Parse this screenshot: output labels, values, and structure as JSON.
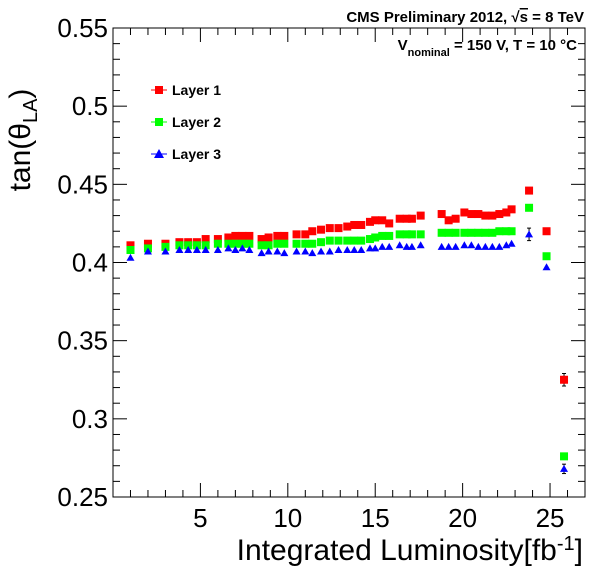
{
  "header": {
    "title_prefix": "CMS Preliminary 2012, ",
    "sqrt": "√",
    "title_s": "s",
    "title_suffix": " = 8 TeV",
    "cond_v": "V",
    "cond_sub": "nominal",
    "cond_rest": " = 150 V, T = 10 °C"
  },
  "axes": {
    "y_label_main": "tan(θ",
    "y_label_sub": "LA",
    "y_label_close": ")",
    "x_label_main": "Integrated Luminosity[fb",
    "x_label_sup": "-1",
    "x_label_close": "]",
    "y_ticks": [
      "0.25",
      "0.3",
      "0.35",
      "0.4",
      "0.45",
      "0.5",
      "0.55"
    ],
    "x_ticks": [
      "5",
      "10",
      "15",
      "20",
      "25"
    ]
  },
  "legend": {
    "entries": [
      "Layer 1",
      "Layer 2",
      "Layer 3"
    ]
  },
  "colors": {
    "layer1": "#ff0000",
    "layer2": "#00ff00",
    "layer3": "#0000ff"
  },
  "chart_data": {
    "type": "scatter",
    "title": "CMS Preliminary 2012, √s = 8 TeV",
    "xlabel": "Integrated Luminosity[fb-1]",
    "ylabel": "tan(θLA)",
    "xlim": [
      0,
      27
    ],
    "ylim": [
      0.25,
      0.55
    ],
    "legend_position": "top-left",
    "series": [
      {
        "name": "Layer 1",
        "marker": "square",
        "x": [
          1.0,
          2.0,
          3.0,
          3.8,
          4.3,
          4.8,
          5.3,
          6.0,
          6.6,
          7.0,
          7.4,
          7.8,
          8.5,
          8.9,
          9.4,
          9.8,
          10.5,
          11.0,
          11.4,
          11.9,
          12.4,
          12.9,
          13.4,
          13.8,
          14.2,
          14.7,
          15.0,
          15.4,
          15.8,
          16.4,
          16.8,
          17.1,
          17.6,
          18.8,
          19.2,
          19.6,
          20.1,
          20.5,
          20.9,
          21.3,
          21.7,
          22.1,
          22.5,
          22.8,
          23.8,
          24.8,
          25.8
        ],
        "y": [
          0.411,
          0.412,
          0.412,
          0.413,
          0.413,
          0.413,
          0.415,
          0.415,
          0.416,
          0.417,
          0.417,
          0.417,
          0.415,
          0.416,
          0.417,
          0.417,
          0.418,
          0.418,
          0.42,
          0.421,
          0.422,
          0.422,
          0.423,
          0.424,
          0.424,
          0.426,
          0.427,
          0.427,
          0.425,
          0.428,
          0.428,
          0.428,
          0.43,
          0.431,
          0.427,
          0.428,
          0.432,
          0.431,
          0.431,
          0.43,
          0.43,
          0.431,
          0.432,
          0.434,
          0.446,
          0.42,
          0.325
        ],
        "y_err": [
          0,
          0,
          0,
          0,
          0,
          0,
          0,
          0,
          0,
          0,
          0,
          0,
          0,
          0,
          0,
          0,
          0,
          0,
          0,
          0,
          0,
          0,
          0,
          0,
          0,
          0,
          0,
          0,
          0,
          0,
          0,
          0,
          0,
          0,
          0,
          0,
          0,
          0,
          0,
          0,
          0,
          0,
          0,
          0,
          0,
          0,
          0.004
        ]
      },
      {
        "name": "Layer 2",
        "marker": "square",
        "x": [
          1.0,
          2.0,
          3.0,
          3.8,
          4.3,
          4.8,
          5.3,
          6.0,
          6.6,
          7.0,
          7.4,
          7.8,
          8.5,
          8.9,
          9.4,
          9.8,
          10.5,
          11.0,
          11.4,
          11.9,
          12.4,
          12.9,
          13.4,
          13.8,
          14.2,
          14.7,
          15.0,
          15.4,
          15.8,
          16.4,
          16.8,
          17.1,
          17.6,
          18.8,
          19.2,
          19.6,
          20.1,
          20.5,
          20.9,
          21.3,
          21.7,
          22.1,
          22.5,
          22.8,
          23.8,
          24.8,
          25.8
        ],
        "y": [
          0.408,
          0.409,
          0.41,
          0.411,
          0.411,
          0.411,
          0.411,
          0.412,
          0.412,
          0.412,
          0.412,
          0.412,
          0.411,
          0.411,
          0.412,
          0.412,
          0.412,
          0.412,
          0.412,
          0.413,
          0.414,
          0.414,
          0.414,
          0.414,
          0.414,
          0.415,
          0.416,
          0.417,
          0.417,
          0.418,
          0.418,
          0.418,
          0.418,
          0.419,
          0.419,
          0.419,
          0.419,
          0.419,
          0.419,
          0.419,
          0.419,
          0.42,
          0.42,
          0.42,
          0.435,
          0.404,
          0.276
        ],
        "y_err": [
          0,
          0,
          0,
          0,
          0,
          0,
          0,
          0,
          0,
          0,
          0,
          0,
          0,
          0,
          0,
          0,
          0,
          0,
          0,
          0,
          0,
          0,
          0,
          0,
          0,
          0,
          0,
          0,
          0,
          0,
          0,
          0,
          0,
          0,
          0,
          0,
          0,
          0,
          0,
          0,
          0,
          0,
          0,
          0,
          0,
          0,
          0.002
        ]
      },
      {
        "name": "Layer 3",
        "marker": "triangle",
        "x": [
          1.0,
          2.0,
          3.0,
          3.8,
          4.3,
          4.8,
          5.3,
          6.0,
          6.6,
          7.0,
          7.4,
          7.8,
          8.5,
          8.9,
          9.4,
          9.8,
          10.5,
          11.0,
          11.4,
          11.9,
          12.4,
          12.9,
          13.4,
          13.8,
          14.2,
          14.7,
          15.0,
          15.4,
          15.8,
          16.4,
          16.8,
          17.1,
          17.6,
          18.8,
          19.2,
          19.6,
          20.1,
          20.5,
          20.9,
          21.3,
          21.7,
          22.1,
          22.5,
          22.8,
          23.8,
          24.8,
          25.8
        ],
        "y": [
          0.403,
          0.407,
          0.407,
          0.408,
          0.408,
          0.408,
          0.408,
          0.408,
          0.409,
          0.408,
          0.409,
          0.408,
          0.406,
          0.407,
          0.407,
          0.406,
          0.407,
          0.407,
          0.406,
          0.407,
          0.407,
          0.408,
          0.408,
          0.408,
          0.408,
          0.409,
          0.409,
          0.41,
          0.41,
          0.411,
          0.41,
          0.41,
          0.411,
          0.41,
          0.41,
          0.41,
          0.411,
          0.411,
          0.41,
          0.41,
          0.41,
          0.41,
          0.411,
          0.412,
          0.418,
          0.397,
          0.268
        ],
        "y_err": [
          0,
          0,
          0,
          0,
          0,
          0,
          0,
          0,
          0,
          0,
          0,
          0,
          0,
          0,
          0,
          0,
          0,
          0,
          0,
          0,
          0,
          0,
          0,
          0,
          0,
          0,
          0,
          0,
          0,
          0,
          0,
          0,
          0,
          0,
          0,
          0,
          0,
          0,
          0,
          0,
          0,
          0,
          0,
          0,
          0.004,
          0,
          0.003
        ]
      }
    ]
  }
}
